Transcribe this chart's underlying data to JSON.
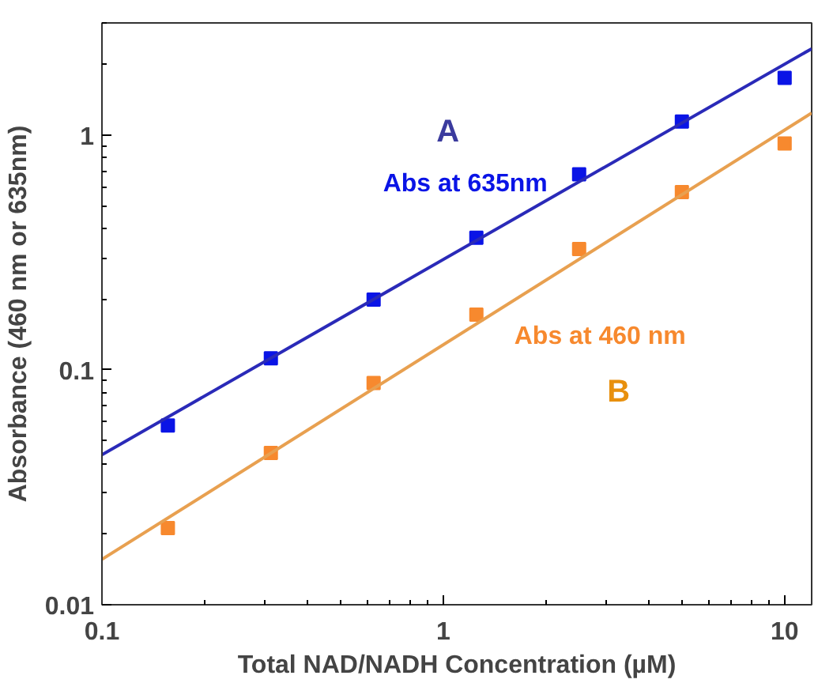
{
  "chart_data": {
    "type": "scatter",
    "xlabel": "Total NAD/NADH Concentration (µM)",
    "ylabel": "Absorbance (460 nm or 635nm)",
    "log": "xy",
    "xlim": [
      0.1,
      12
    ],
    "ylim": [
      0.01,
      3
    ],
    "xticks": [
      0.1,
      1,
      10
    ],
    "yticks": [
      0.01,
      0.1,
      1
    ],
    "grid": false,
    "series": [
      {
        "name": "Abs at 635nm",
        "color": "#0a14e6",
        "marker": "square",
        "x": [
          0.156,
          0.3125,
          0.625,
          1.25,
          2.5,
          5,
          10
        ],
        "values": [
          0.058,
          0.112,
          0.199,
          0.365,
          0.68,
          1.14,
          1.75
        ]
      },
      {
        "name": "Abs at 460 nm",
        "color": "#f7892e",
        "marker": "square",
        "x": [
          0.156,
          0.3125,
          0.625,
          1.25,
          2.5,
          5,
          10
        ],
        "values": [
          0.0212,
          0.0443,
          0.088,
          0.172,
          0.327,
          0.571,
          0.92
        ]
      },
      {
        "type": "line",
        "color": "#2a2ab8",
        "x": [
          0.1,
          12
        ],
        "values": [
          0.0435,
          2.33
        ]
      },
      {
        "type": "line",
        "color": "#e8a050",
        "x": [
          0.1,
          12
        ],
        "values": [
          0.0156,
          1.24
        ]
      }
    ],
    "annotations": [
      "A",
      "B"
    ]
  }
}
